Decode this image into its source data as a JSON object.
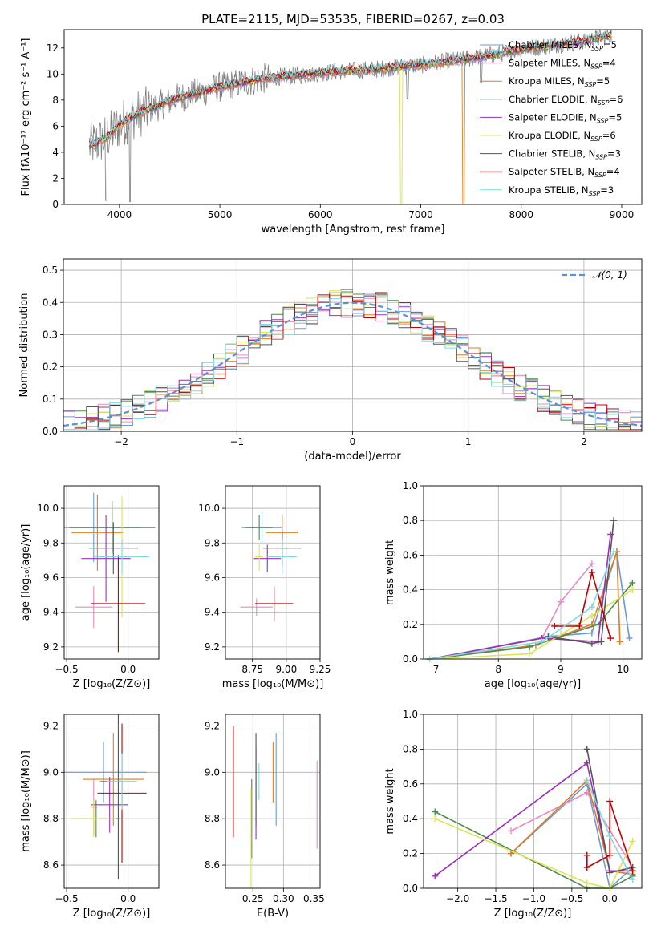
{
  "chart_data": [
    {
      "type": "line",
      "title": "PLATE=2115, MJD=53535, FIBERID=0267, z=0.03",
      "xlabel": "wavelength [Angstrom, rest frame]",
      "ylabel": "Flux [fλ10⁻¹⁷ erg cm⁻² s⁻¹ A⁻¹]",
      "xlim": [
        3450,
        9200
      ],
      "ylim": [
        0,
        13.4
      ],
      "xticks": [
        4000,
        5000,
        6000,
        7000,
        8000,
        9000
      ],
      "yticks": [
        0,
        2,
        4,
        6,
        8,
        10,
        12
      ],
      "grid": false,
      "legend_placement": "right",
      "observed_color": "#808080",
      "series": [
        {
          "name": "Chabrier MILES, N_SSP=5",
          "color": "#6a9bd8"
        },
        {
          "name": "Salpeter MILES, N_SSP=4",
          "color": "#e78ac3"
        },
        {
          "name": "Kroupa MILES, N_SSP=5",
          "color": "#e07b24"
        },
        {
          "name": "Chabrier ELODIE, N_SSP=6",
          "color": "#4f8a4f"
        },
        {
          "name": "Salpeter ELODIE, N_SSP=5",
          "color": "#9b30b8"
        },
        {
          "name": "Kroupa ELODIE, N_SSP=6",
          "color": "#d9e650"
        },
        {
          "name": "Chabrier STELIB, N_SSP=3",
          "color": "#555555"
        },
        {
          "name": "Salpeter STELIB, N_SSP=4",
          "color": "#c00000"
        },
        {
          "name": "Kroupa STELIB, N_SSP=3",
          "color": "#7fd9df"
        }
      ],
      "continuum": {
        "x": [
          3700,
          3800,
          3900,
          4000,
          4100,
          4200,
          4300,
          4400,
          4500,
          4600,
          4700,
          4800,
          4900,
          5000,
          5200,
          5400,
          5600,
          5800,
          6000,
          6200,
          6400,
          6600,
          6800,
          7000,
          7200,
          7400,
          7600,
          7800,
          8000,
          8200,
          8400,
          8600,
          8800,
          8900
        ],
        "y": [
          4.5,
          4.8,
          5.3,
          6.1,
          6.6,
          7.0,
          7.3,
          7.6,
          7.9,
          8.2,
          8.4,
          8.6,
          8.8,
          9.0,
          9.3,
          9.6,
          9.8,
          9.9,
          10.1,
          10.2,
          10.3,
          10.4,
          10.6,
          10.7,
          10.9,
          11.1,
          11.3,
          11.6,
          11.9,
          12.1,
          12.3,
          12.5,
          12.8,
          13.0
        ]
      }
    },
    {
      "type": "line",
      "xlabel": "(data-model)/error",
      "ylabel": "Normed distribution",
      "xlim": [
        -2.5,
        2.5
      ],
      "ylim": [
        0,
        0.535
      ],
      "xticks": [
        -2,
        -1,
        0,
        1,
        2
      ],
      "yticks": [
        0.0,
        0.1,
        0.2,
        0.3,
        0.4,
        0.5
      ],
      "grid": true,
      "legend_placement": "top-right",
      "legend": "𝒩(0, 1)",
      "gaussian_color": "#5b8fd6",
      "bin_width": 0.1
    },
    {
      "type": "scatter",
      "xlabel": "Z [log₁₀(Z/Z⊙)]",
      "ylabel": "age  [log₁₀(age/yr)]",
      "xlim": [
        -0.52,
        0.25
      ],
      "ylim": [
        9.13,
        10.13
      ],
      "xticks": [
        -0.5,
        0.0
      ],
      "yticks": [
        9.2,
        9.4,
        9.6,
        9.8,
        10.0
      ],
      "grid": true,
      "points": [
        {
          "x": -0.28,
          "y": 9.89,
          "xerr": 0.38,
          "yerr": 0.2,
          "color": "#6a9bd8"
        },
        {
          "x": -0.28,
          "y": 9.43,
          "xerr": 0.15,
          "yerr": 0.12,
          "color": "#e78ac3"
        },
        {
          "x": -0.25,
          "y": 9.86,
          "xerr": 0.21,
          "yerr": 0.22,
          "color": "#e07b24"
        },
        {
          "x": -0.13,
          "y": 9.89,
          "xerr": 0.35,
          "yerr": 0.15,
          "color": "#4f8a4f"
        },
        {
          "x": -0.18,
          "y": 9.71,
          "xerr": 0.2,
          "yerr": 0.25,
          "color": "#9b30b8"
        },
        {
          "x": -0.05,
          "y": 9.72,
          "xerr": 0.12,
          "yerr": 0.35,
          "color": "#d9e650"
        },
        {
          "x": -0.12,
          "y": 9.77,
          "xerr": 0.2,
          "yerr": 0.15,
          "color": "#555555"
        },
        {
          "x": -0.08,
          "y": 9.45,
          "xerr": 0.22,
          "yerr": 0.28,
          "color": "#c00000"
        },
        {
          "x": -0.05,
          "y": 9.72,
          "xerr": 0.22,
          "yerr": 0.1,
          "color": "#7fd9df"
        }
      ]
    },
    {
      "type": "scatter",
      "xlabel": "mass [log₁₀(M/M⊙)]",
      "xlim": [
        8.55,
        9.25
      ],
      "ylim": [
        9.13,
        10.13
      ],
      "xticks": [
        8.75,
        9.0,
        9.25
      ],
      "yticks": [
        9.2,
        9.4,
        9.6,
        9.8,
        10.0
      ],
      "grid": true,
      "points": [
        {
          "x": 8.82,
          "y": 9.89,
          "xerr": 0.15,
          "yerr": 0.1,
          "color": "#6a9bd8"
        },
        {
          "x": 8.78,
          "y": 9.43,
          "xerr": 0.12,
          "yerr": 0.05,
          "color": "#e78ac3"
        },
        {
          "x": 8.97,
          "y": 9.86,
          "xerr": 0.12,
          "yerr": 0.1,
          "color": "#e07b24"
        },
        {
          "x": 8.8,
          "y": 9.89,
          "xerr": 0.1,
          "yerr": 0.07,
          "color": "#4f8a4f"
        },
        {
          "x": 8.86,
          "y": 9.71,
          "xerr": 0.1,
          "yerr": 0.08,
          "color": "#9b30b8"
        },
        {
          "x": 8.8,
          "y": 9.72,
          "xerr": 0.03,
          "yerr": 0.08,
          "color": "#d9e650"
        },
        {
          "x": 8.97,
          "y": 9.77,
          "xerr": 0.14,
          "yerr": 0.1,
          "color": "#555555"
        },
        {
          "x": 8.91,
          "y": 9.45,
          "xerr": 0.14,
          "yerr": 0.1,
          "color": "#c00000"
        },
        {
          "x": 8.97,
          "y": 9.72,
          "xerr": 0.11,
          "yerr": 0.1,
          "color": "#7fd9df"
        }
      ]
    },
    {
      "type": "line",
      "xlabel": "age  [log₁₀(age/yr)]",
      "ylabel": "mass weight",
      "xlim": [
        6.8,
        10.3
      ],
      "ylim": [
        0,
        1.0
      ],
      "xticks": [
        7,
        8,
        9,
        10
      ],
      "yticks": [
        0.0,
        0.2,
        0.4,
        0.6,
        0.8,
        1.0
      ],
      "grid": true,
      "series": [
        {
          "color": "#6a9bd8",
          "x": [
            6.9,
            8.8,
            9.5,
            9.9,
            10.1
          ],
          "y": [
            0.0,
            0.13,
            0.15,
            0.62,
            0.12
          ]
        },
        {
          "color": "#e78ac3",
          "x": [
            6.9,
            8.7,
            9.0,
            9.5
          ],
          "y": [
            0.0,
            0.12,
            0.33,
            0.55
          ]
        },
        {
          "color": "#e07b24",
          "x": [
            6.9,
            8.6,
            9.5,
            9.9,
            9.95
          ],
          "y": [
            0.0,
            0.08,
            0.2,
            0.62,
            0.1
          ]
        },
        {
          "color": "#4f8a4f",
          "x": [
            6.9,
            8.5,
            9.6,
            10.15
          ],
          "y": [
            0.0,
            0.07,
            0.2,
            0.44
          ]
        },
        {
          "color": "#9b30b8",
          "x": [
            6.9,
            8.7,
            9.6,
            9.8
          ],
          "y": [
            0.0,
            0.12,
            0.1,
            0.72
          ]
        },
        {
          "color": "#d9e650",
          "x": [
            6.9,
            8.5,
            9.5,
            10.15
          ],
          "y": [
            0.0,
            0.03,
            0.25,
            0.4
          ]
        },
        {
          "color": "#555555",
          "x": [
            8.8,
            9.5,
            9.65,
            9.85
          ],
          "y": [
            0.13,
            0.09,
            0.1,
            0.8
          ]
        },
        {
          "color": "#c00000",
          "x": [
            8.9,
            9.3,
            9.5,
            9.8
          ],
          "y": [
            0.19,
            0.19,
            0.5,
            0.12
          ]
        },
        {
          "color": "#7fd9df",
          "x": [
            6.9,
            8.7,
            9.5,
            9.85
          ],
          "y": [
            0.0,
            0.1,
            0.3,
            0.62
          ]
        }
      ]
    },
    {
      "type": "scatter",
      "xlabel": "Z [log₁₀(Z/Z⊙)]",
      "ylabel": "mass [log₁₀(M/M⊙)]",
      "xlim": [
        -0.52,
        0.25
      ],
      "ylim": [
        8.5,
        9.25
      ],
      "xticks": [
        -0.5,
        0.0
      ],
      "yticks": [
        8.6,
        8.8,
        9.0,
        9.2
      ],
      "grid": true,
      "points": [
        {
          "x": -0.2,
          "y": 9.0,
          "xerr": 0.35,
          "yerr": 0.13,
          "color": "#6a9bd8"
        },
        {
          "x": -0.28,
          "y": 8.85,
          "xerr": 0.03,
          "yerr": 0.12,
          "color": "#e78ac3"
        },
        {
          "x": -0.12,
          "y": 8.97,
          "xerr": 0.25,
          "yerr": 0.2,
          "color": "#e07b24"
        },
        {
          "x": -0.26,
          "y": 8.8,
          "xerr": 0.2,
          "yerr": 0.08,
          "color": "#4f8a4f"
        },
        {
          "x": -0.15,
          "y": 8.86,
          "xerr": 0.15,
          "yerr": 0.12,
          "color": "#9b30b8"
        },
        {
          "x": -0.28,
          "y": 8.8,
          "xerr": 0.18,
          "yerr": 0.08,
          "color": "#d9e650"
        },
        {
          "x": -0.08,
          "y": 8.96,
          "xerr": 0.15,
          "yerr": 0.42,
          "color": "#555555"
        },
        {
          "x": -0.05,
          "y": 8.91,
          "xerr": 0.2,
          "yerr": 0.3,
          "color": "#c00000"
        },
        {
          "x": -0.05,
          "y": 8.96,
          "xerr": 0.12,
          "yerr": 0.12,
          "color": "#7fd9df"
        }
      ]
    },
    {
      "type": "scatter",
      "xlabel": "E(B-V)",
      "xlim": [
        0.205,
        0.36
      ],
      "ylim": [
        8.5,
        9.25
      ],
      "xticks": [
        0.25,
        0.3,
        0.35
      ],
      "yticks": [
        8.6,
        8.8,
        9.0,
        9.2
      ],
      "grid": true,
      "points": [
        {
          "x": 0.288,
          "y": 8.97,
          "yerr": 0.2,
          "color": "#6a9bd8"
        },
        {
          "x": 0.355,
          "y": 8.86,
          "yerr": 0.19,
          "color": "#e78ac3"
        },
        {
          "x": 0.283,
          "y": 9.0,
          "yerr": 0.13,
          "color": "#e07b24"
        },
        {
          "x": 0.248,
          "y": 8.8,
          "yerr": 0.17,
          "color": "#4f8a4f"
        },
        {
          "x": 0.255,
          "y": 8.91,
          "yerr": 0.2,
          "color": "#9b30b8"
        },
        {
          "x": 0.247,
          "y": 8.7,
          "yerr": 0.23,
          "color": "#d9e650"
        },
        {
          "x": 0.255,
          "y": 8.97,
          "yerr": 0.2,
          "color": "#555555"
        },
        {
          "x": 0.218,
          "y": 8.96,
          "yerr": 0.24,
          "color": "#c00000"
        },
        {
          "x": 0.26,
          "y": 8.96,
          "yerr": 0.08,
          "color": "#7fd9df"
        }
      ]
    },
    {
      "type": "line",
      "xlabel": "Z [log₁₀(Z/Z⊙)]",
      "ylabel": "mass weight",
      "xlim": [
        -2.45,
        0.42
      ],
      "ylim": [
        0,
        1.0
      ],
      "xticks": [
        -2.0,
        -1.5,
        -1.0,
        -0.5,
        0.0
      ],
      "yticks": [
        0.0,
        0.2,
        0.4,
        0.6,
        0.8,
        1.0
      ],
      "grid": true,
      "series": [
        {
          "color": "#6a9bd8",
          "x": [
            -1.3,
            -0.3,
            0.0,
            0.3
          ],
          "y": [
            0.2,
            0.6,
            0.0,
            0.12
          ]
        },
        {
          "color": "#e78ac3",
          "x": [
            -1.3,
            -0.3,
            0.3
          ],
          "y": [
            0.33,
            0.55,
            0.12
          ]
        },
        {
          "color": "#e07b24",
          "x": [
            -1.3,
            -0.3,
            0.0,
            0.3
          ],
          "y": [
            0.2,
            0.62,
            0.1,
            0.08
          ]
        },
        {
          "color": "#4f8a4f",
          "x": [
            -2.3,
            -0.3,
            0.0,
            0.3
          ],
          "y": [
            0.44,
            0.0,
            0.0,
            0.07
          ]
        },
        {
          "color": "#9b30b8",
          "x": [
            -2.3,
            -0.3,
            0.0,
            0.3
          ],
          "y": [
            0.07,
            0.72,
            0.1,
            0.1
          ]
        },
        {
          "color": "#d9e650",
          "x": [
            -2.3,
            -0.3,
            0.0,
            0.3
          ],
          "y": [
            0.4,
            0.03,
            0.0,
            0.27
          ]
        },
        {
          "color": "#555555",
          "x": [
            -0.3,
            0.0,
            0.3
          ],
          "y": [
            0.8,
            0.09,
            0.12
          ]
        },
        {
          "color": "#c00000",
          "x": [
            -0.3,
            -0.3,
            0.0,
            0.0,
            0.3
          ],
          "y": [
            0.19,
            0.12,
            0.19,
            0.5,
            0.1
          ]
        },
        {
          "color": "#7fd9df",
          "x": [
            -0.3,
            0.0,
            0.3
          ],
          "y": [
            0.62,
            0.3,
            0.05
          ]
        }
      ]
    }
  ]
}
